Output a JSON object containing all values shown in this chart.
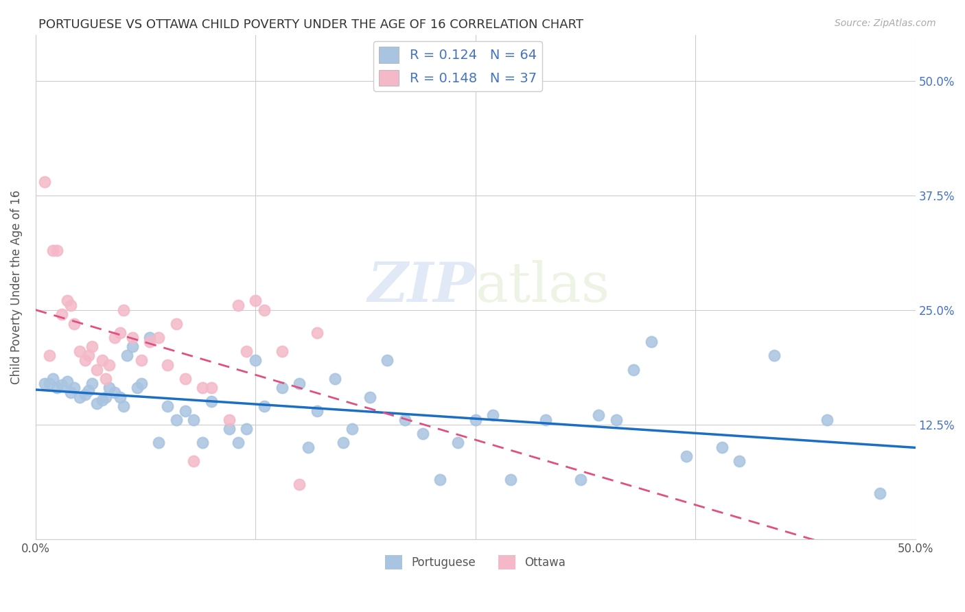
{
  "title": "PORTUGUESE VS OTTAWA CHILD POVERTY UNDER THE AGE OF 16 CORRELATION CHART",
  "source": "Source: ZipAtlas.com",
  "ylabel": "Child Poverty Under the Age of 16",
  "xlim": [
    0.0,
    0.5
  ],
  "ylim": [
    0.0,
    0.55
  ],
  "portuguese_color": "#a8c4e0",
  "ottawa_color": "#f4b8c8",
  "portuguese_line_color": "#1a6fc4",
  "ottawa_line_color": "#e05080",
  "portuguese_R": 0.124,
  "portuguese_N": 64,
  "ottawa_R": 0.148,
  "ottawa_N": 37,
  "watermark_zip": "ZIP",
  "watermark_atlas": "atlas",
  "portuguese_x": [
    0.005,
    0.008,
    0.01,
    0.012,
    0.015,
    0.018,
    0.02,
    0.022,
    0.025,
    0.028,
    0.03,
    0.032,
    0.035,
    0.038,
    0.04,
    0.042,
    0.045,
    0.048,
    0.05,
    0.052,
    0.055,
    0.058,
    0.06,
    0.065,
    0.07,
    0.075,
    0.08,
    0.085,
    0.09,
    0.095,
    0.1,
    0.11,
    0.115,
    0.12,
    0.125,
    0.13,
    0.14,
    0.15,
    0.155,
    0.16,
    0.17,
    0.175,
    0.18,
    0.19,
    0.2,
    0.21,
    0.22,
    0.23,
    0.24,
    0.25,
    0.26,
    0.27,
    0.29,
    0.31,
    0.32,
    0.33,
    0.34,
    0.35,
    0.37,
    0.39,
    0.4,
    0.42,
    0.45,
    0.48
  ],
  "portuguese_y": [
    0.17,
    0.17,
    0.175,
    0.165,
    0.168,
    0.172,
    0.16,
    0.165,
    0.155,
    0.158,
    0.162,
    0.17,
    0.148,
    0.152,
    0.155,
    0.165,
    0.16,
    0.155,
    0.145,
    0.2,
    0.21,
    0.165,
    0.17,
    0.22,
    0.105,
    0.145,
    0.13,
    0.14,
    0.13,
    0.105,
    0.15,
    0.12,
    0.105,
    0.12,
    0.195,
    0.145,
    0.165,
    0.17,
    0.1,
    0.14,
    0.175,
    0.105,
    0.12,
    0.155,
    0.195,
    0.13,
    0.115,
    0.065,
    0.105,
    0.13,
    0.135,
    0.065,
    0.13,
    0.065,
    0.135,
    0.13,
    0.185,
    0.215,
    0.09,
    0.1,
    0.085,
    0.2,
    0.13,
    0.05
  ],
  "ottawa_x": [
    0.005,
    0.008,
    0.01,
    0.012,
    0.015,
    0.018,
    0.02,
    0.022,
    0.025,
    0.028,
    0.03,
    0.032,
    0.035,
    0.038,
    0.04,
    0.042,
    0.045,
    0.048,
    0.05,
    0.055,
    0.06,
    0.065,
    0.07,
    0.075,
    0.08,
    0.085,
    0.09,
    0.095,
    0.1,
    0.11,
    0.115,
    0.12,
    0.125,
    0.13,
    0.14,
    0.15,
    0.16
  ],
  "ottawa_y": [
    0.39,
    0.2,
    0.315,
    0.315,
    0.245,
    0.26,
    0.255,
    0.235,
    0.205,
    0.195,
    0.2,
    0.21,
    0.185,
    0.195,
    0.175,
    0.19,
    0.22,
    0.225,
    0.25,
    0.22,
    0.195,
    0.215,
    0.22,
    0.19,
    0.235,
    0.175,
    0.085,
    0.165,
    0.165,
    0.13,
    0.255,
    0.205,
    0.26,
    0.25,
    0.205,
    0.06,
    0.225
  ]
}
